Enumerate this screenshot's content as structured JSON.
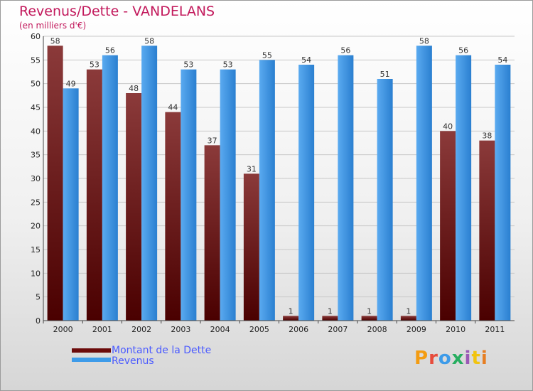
{
  "header": {
    "title": "Revenus/Dette - VANDELANS",
    "subtitle": "(en milliers d'€)"
  },
  "legend": {
    "items": [
      {
        "label": "Montant de la Dette",
        "color": "#6b0a0a"
      },
      {
        "label": "Revenus",
        "color": "#3d9be9"
      }
    ]
  },
  "logo": {
    "text": "Proxiti"
  },
  "colors": {
    "debt_top": "#8b3a3a",
    "debt_bottom": "#4a0000",
    "revenue_top": "#5aaaf0",
    "revenue_bottom": "#2a7fd0",
    "grid": "#c8c8c8"
  },
  "chart_data": {
    "type": "bar",
    "categories": [
      "2000",
      "2001",
      "2002",
      "2003",
      "2004",
      "2005",
      "2006",
      "2007",
      "2008",
      "2009",
      "2010",
      "2011"
    ],
    "series": [
      {
        "name": "Montant de la Dette",
        "values": [
          58,
          53,
          48,
          44,
          37,
          31,
          1,
          1,
          1,
          1,
          40,
          38
        ]
      },
      {
        "name": "Revenus",
        "values": [
          49,
          56,
          58,
          53,
          53,
          55,
          54,
          56,
          51,
          58,
          56,
          54
        ]
      }
    ],
    "ylim": [
      0,
      60
    ],
    "yticks": [
      0,
      5,
      10,
      15,
      20,
      25,
      30,
      35,
      40,
      45,
      50,
      55,
      60
    ],
    "grid": true,
    "legend_position": "bottom-left"
  }
}
